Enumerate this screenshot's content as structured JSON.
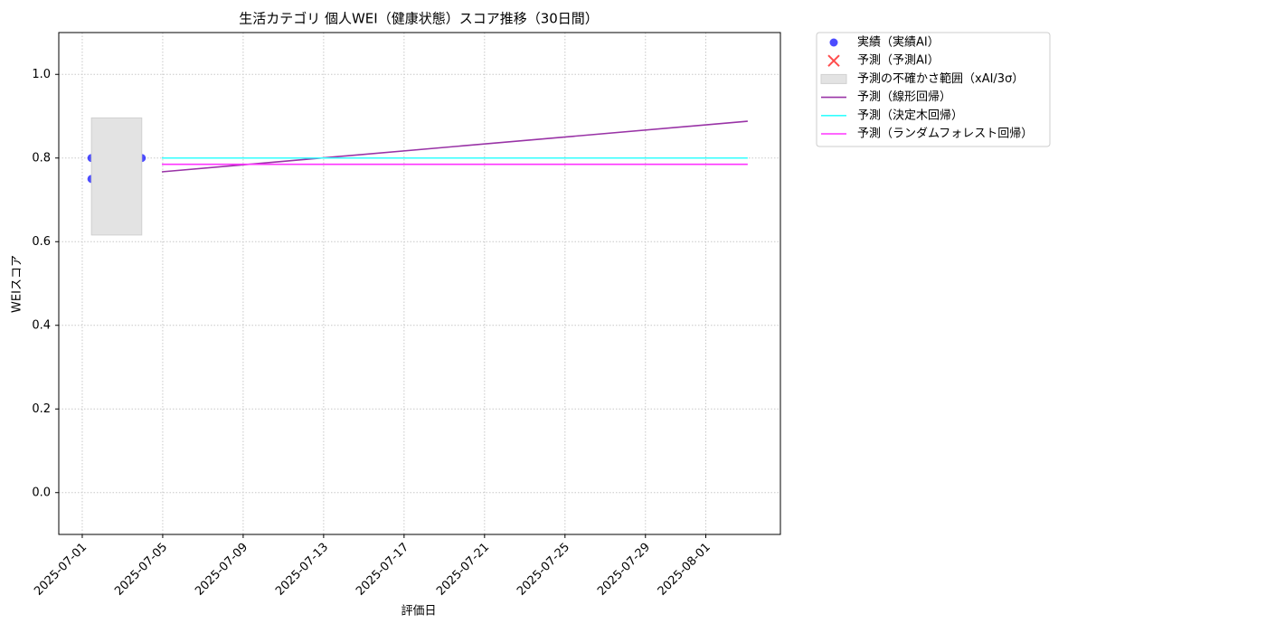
{
  "chart_data": {
    "type": "line",
    "title": "生活カテゴリ 個人WEI（健康状態）スコア推移（30日間）",
    "x_label": "評価日",
    "y_label": "WEIスコア",
    "xlim": [
      "2025-06-29T20:00",
      "2025-08-04T17:00"
    ],
    "ylim": [
      -0.1,
      1.1
    ],
    "xticks": [
      "2025-07-01",
      "2025-07-05",
      "2025-07-09",
      "2025-07-13",
      "2025-07-17",
      "2025-07-21",
      "2025-07-25",
      "2025-07-29",
      "2025-08-01"
    ],
    "yticks": [
      {
        "value": 0,
        "label": "0.0"
      },
      0.2,
      0.4,
      0.6,
      0.8,
      {
        "value": 1,
        "label": "1.0"
      }
    ],
    "grid": true,
    "legend": "outside-upper-right",
    "series": [
      {
        "name": "実績（実績AI）",
        "type": "scatter",
        "color": "#0000ff",
        "x": [
          "2025-07-01T11:00",
          "2025-07-01T11:00",
          "2025-07-02T00:00",
          "2025-07-02T07:00",
          "2025-07-02T08:00",
          "2025-07-02T23:00",
          "2025-07-03T07:00",
          "2025-07-03T08:00",
          "2025-07-03T23:00"
        ],
        "values": [
          0.8,
          0.75,
          0.8,
          0.7,
          0.7,
          0.75,
          0.7,
          0.8,
          0.8
        ]
      },
      {
        "name": "予測（予測AI）",
        "type": "cross",
        "color": "#ff0000",
        "x": [],
        "values": []
      },
      {
        "name": "予測の不確かさ範囲（xAI/3σ）",
        "type": "band",
        "color": "#e3e3e3",
        "x": [
          "2025-07-01T11:00",
          "2025-07-03T23:00"
        ],
        "lower": [
          0.616,
          0.616
        ],
        "upper": [
          0.896,
          0.896
        ]
      },
      {
        "name": "予測（線形回帰）",
        "type": "line",
        "color": "#9933a6",
        "x": [
          "2025-07-04T23:00",
          "2025-08-03T02:00"
        ],
        "values": [
          0.767,
          0.888
        ]
      },
      {
        "name": "予測（決定木回帰）",
        "type": "line",
        "color": "#33ffff",
        "x": [
          "2025-07-04T23:00",
          "2025-08-03T02:00"
        ],
        "values": [
          0.8,
          0.8
        ]
      },
      {
        "name": "予測（ランダムフォレスト回帰）",
        "type": "line",
        "color": "#ff33ff",
        "x": [
          "2025-07-04T23:00",
          "2025-08-03T02:00"
        ],
        "values": [
          0.785,
          0.785
        ]
      }
    ]
  }
}
